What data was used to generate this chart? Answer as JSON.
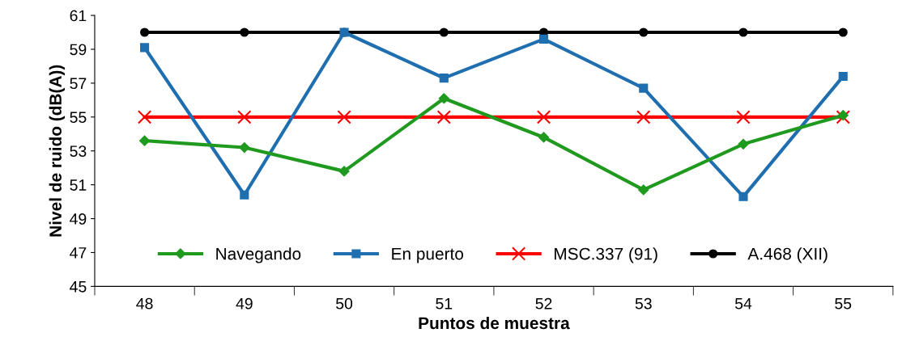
{
  "chart_data": {
    "type": "line",
    "xlabel": "Puntos de muestra",
    "ylabel": "Nivel de ruido (dB(A))",
    "categories": [
      "48",
      "49",
      "50",
      "51",
      "52",
      "53",
      "54",
      "55"
    ],
    "series": [
      {
        "name": "Navegando",
        "color": "#1f9a1f",
        "marker": "diamond",
        "values": [
          53.6,
          53.2,
          51.8,
          56.1,
          53.8,
          50.7,
          53.4,
          55.1
        ]
      },
      {
        "name": "En puerto",
        "color": "#1f6fb0",
        "marker": "square",
        "values": [
          59.1,
          50.4,
          60.0,
          57.3,
          59.6,
          56.7,
          50.3,
          57.4
        ]
      },
      {
        "name": "MSC.337 (91)",
        "color": "#ff0000",
        "marker": "cross",
        "values": [
          55,
          55,
          55,
          55,
          55,
          55,
          55,
          55
        ]
      },
      {
        "name": "A.468 (XII)",
        "color": "#000000",
        "marker": "circle",
        "values": [
          60,
          60,
          60,
          60,
          60,
          60,
          60,
          60
        ]
      }
    ],
    "ylim": [
      45,
      61
    ],
    "yticks": [
      45,
      47,
      49,
      51,
      53,
      55,
      57,
      59,
      61
    ],
    "grid": false,
    "legend": "bottom",
    "line_style": "solid"
  }
}
